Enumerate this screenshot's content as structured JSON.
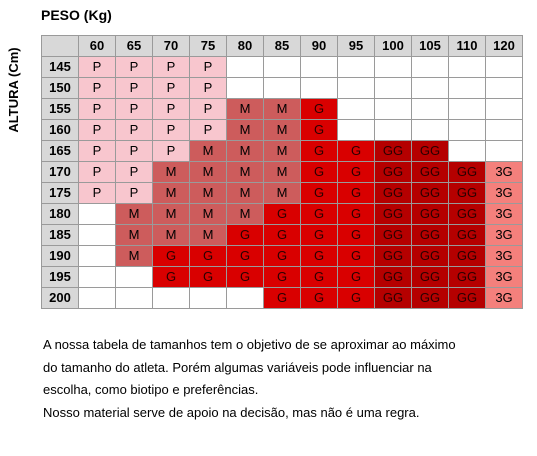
{
  "peso_label": "PESO (Kg)",
  "altura_label": "ALTURA (Cm)",
  "weights": [
    "60",
    "65",
    "70",
    "75",
    "80",
    "85",
    "90",
    "95",
    "100",
    "105",
    "110",
    "120"
  ],
  "colors": {
    "P": "#f8c6ce",
    "M": "#cd5c5c",
    "G": "#d90000",
    "GG": "#b50000",
    "3G": "#f4807c",
    "empty": "#ffffff",
    "header": "#d8d8d8"
  },
  "rows": [
    {
      "height": "145",
      "sizes": [
        "P",
        "P",
        "P",
        "P",
        "",
        "",
        "",
        "",
        "",
        "",
        "",
        ""
      ]
    },
    {
      "height": "150",
      "sizes": [
        "P",
        "P",
        "P",
        "P",
        "",
        "",
        "",
        "",
        "",
        "",
        "",
        ""
      ]
    },
    {
      "height": "155",
      "sizes": [
        "P",
        "P",
        "P",
        "P",
        "M",
        "M",
        "G",
        "",
        "",
        "",
        "",
        ""
      ]
    },
    {
      "height": "160",
      "sizes": [
        "P",
        "P",
        "P",
        "P",
        "M",
        "M",
        "G",
        "",
        "",
        "",
        "",
        ""
      ]
    },
    {
      "height": "165",
      "sizes": [
        "P",
        "P",
        "P",
        "M",
        "M",
        "M",
        "G",
        "G",
        "GG",
        "GG",
        "",
        ""
      ]
    },
    {
      "height": "170",
      "sizes": [
        "P",
        "P",
        "M",
        "M",
        "M",
        "M",
        "G",
        "G",
        "GG",
        "GG",
        "GG",
        "3G"
      ]
    },
    {
      "height": "175",
      "sizes": [
        "P",
        "P",
        "M",
        "M",
        "M",
        "M",
        "G",
        "G",
        "GG",
        "GG",
        "GG",
        "3G"
      ]
    },
    {
      "height": "180",
      "sizes": [
        "",
        "M",
        "M",
        "M",
        "M",
        "G",
        "G",
        "G",
        "GG",
        "GG",
        "GG",
        "3G"
      ]
    },
    {
      "height": "185",
      "sizes": [
        "",
        "M",
        "M",
        "M",
        "G",
        "G",
        "G",
        "G",
        "GG",
        "GG",
        "GG",
        "3G"
      ]
    },
    {
      "height": "190",
      "sizes": [
        "",
        "M",
        "G",
        "G",
        "G",
        "G",
        "G",
        "G",
        "GG",
        "GG",
        "GG",
        "3G"
      ]
    },
    {
      "height": "195",
      "sizes": [
        "",
        "",
        "G",
        "G",
        "G",
        "G",
        "G",
        "G",
        "GG",
        "GG",
        "GG",
        "3G"
      ]
    },
    {
      "height": "200",
      "sizes": [
        "",
        "",
        "",
        "",
        "",
        "G",
        "G",
        "G",
        "GG",
        "GG",
        "GG",
        "3G"
      ]
    }
  ],
  "note": [
    "A nossa tabela de tamanhos tem o objetivo de se aproximar ao máximo",
    "do tamanho do atleta. Porém algumas variáveis pode influenciar na",
    "escolha, como biotipo e preferências.",
    "Nosso material serve de apoio na decisão, mas não é uma regra."
  ]
}
